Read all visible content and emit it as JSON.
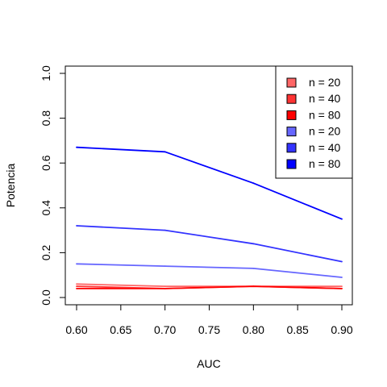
{
  "chart_data": {
    "type": "line",
    "title": "",
    "xlabel": "AUC",
    "ylabel": "Potencia",
    "x": [
      0.6,
      0.7,
      0.8,
      0.9
    ],
    "xlim": [
      0.6,
      0.9
    ],
    "ylim": [
      0,
      1
    ],
    "xticks": [
      "0.60",
      "0.65",
      "0.70",
      "0.75",
      "0.80",
      "0.85",
      "0.90"
    ],
    "yticks": [
      "0.0",
      "0.2",
      "0.4",
      "0.6",
      "0.8",
      "1.0"
    ],
    "grid": false,
    "legend_position": "top-right",
    "series": [
      {
        "name": "n = 20",
        "color": "#FF6666",
        "values": [
          0.06,
          0.05,
          0.05,
          0.05
        ]
      },
      {
        "name": "n = 40",
        "color": "#FF3333",
        "values": [
          0.05,
          0.04,
          0.05,
          0.04
        ]
      },
      {
        "name": "n = 80",
        "color": "#FF0000",
        "values": [
          0.04,
          0.04,
          0.05,
          0.04
        ]
      },
      {
        "name": "n = 20",
        "color": "#6666FF",
        "values": [
          0.15,
          0.14,
          0.13,
          0.09
        ]
      },
      {
        "name": "n = 40",
        "color": "#3333FF",
        "values": [
          0.32,
          0.3,
          0.24,
          0.16
        ]
      },
      {
        "name": "n = 80",
        "color": "#0000FF",
        "values": [
          0.67,
          0.65,
          0.51,
          0.35
        ]
      }
    ]
  }
}
